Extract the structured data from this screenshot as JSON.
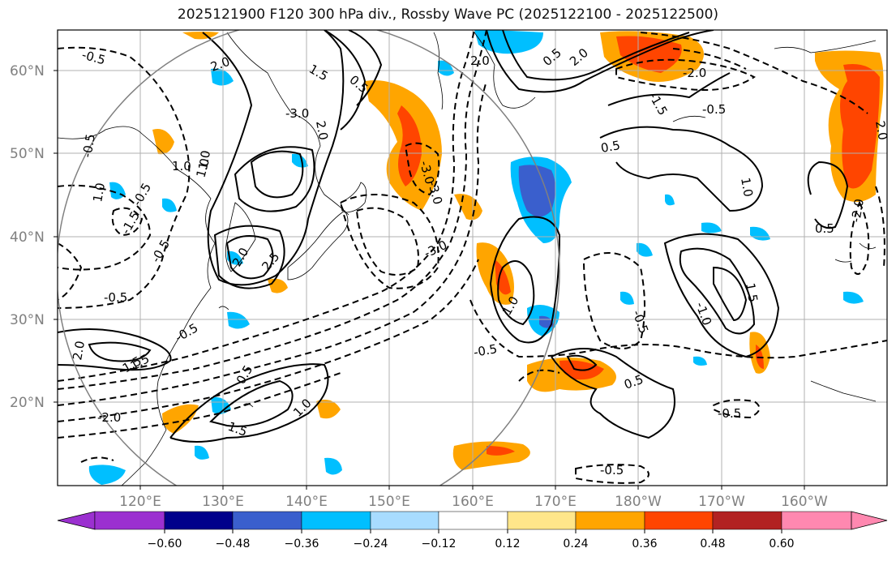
{
  "title": "2025121900 F120 300 hPa div., Rossby Wave PC (2025122100 - 2025122500)",
  "lat_labels": [
    "60°N",
    "50°N",
    "40°N",
    "30°N",
    "20°N"
  ],
  "lon_labels": [
    "120°E",
    "130°E",
    "140°E",
    "150°E",
    "160°E",
    "170°E",
    "180°W",
    "170°W",
    "160°W"
  ],
  "contour_labels": [
    "-0.5",
    "2.0",
    "1.5",
    "0.5",
    "-3.0",
    "2.0",
    "1.0",
    "-3.0",
    "-0.5",
    "2.0",
    "2.0",
    "-2.0",
    "-1.5",
    "-0.5",
    "0.5",
    "1.0",
    "1.0",
    "1.5",
    "-0.5",
    "0.5",
    "-2.0",
    "2.0",
    "-3.0",
    "0.5",
    "1.5",
    "2.0",
    "-1.0",
    "-0.5",
    "0.5",
    "-0.5",
    "1.0",
    "1.0",
    "-0.5",
    "-0.5",
    "0.5",
    "-0.5",
    "-2.0",
    "1.5",
    "1.0",
    "-0.5",
    "-0.5",
    "-1.5",
    "2.5",
    "1.0",
    "2.0",
    "-3.0",
    "-1.5"
  ],
  "colorbar": {
    "ticks": [
      "−0.60",
      "−0.48",
      "−0.36",
      "−0.24",
      "−0.12",
      "0.12",
      "0.24",
      "0.36",
      "0.48",
      "0.60"
    ],
    "colors": [
      "#9b30d0",
      "#00008b",
      "#3a5fcd",
      "#00bfff",
      "#a8dcff",
      "#ffffff",
      "#ffe68a",
      "#ffa500",
      "#ff4500",
      "#b22222",
      "#ff88b0"
    ]
  },
  "legend_colors": {
    "circle": "#808080",
    "grid": "#b0b0b0",
    "contour": "#000000"
  }
}
